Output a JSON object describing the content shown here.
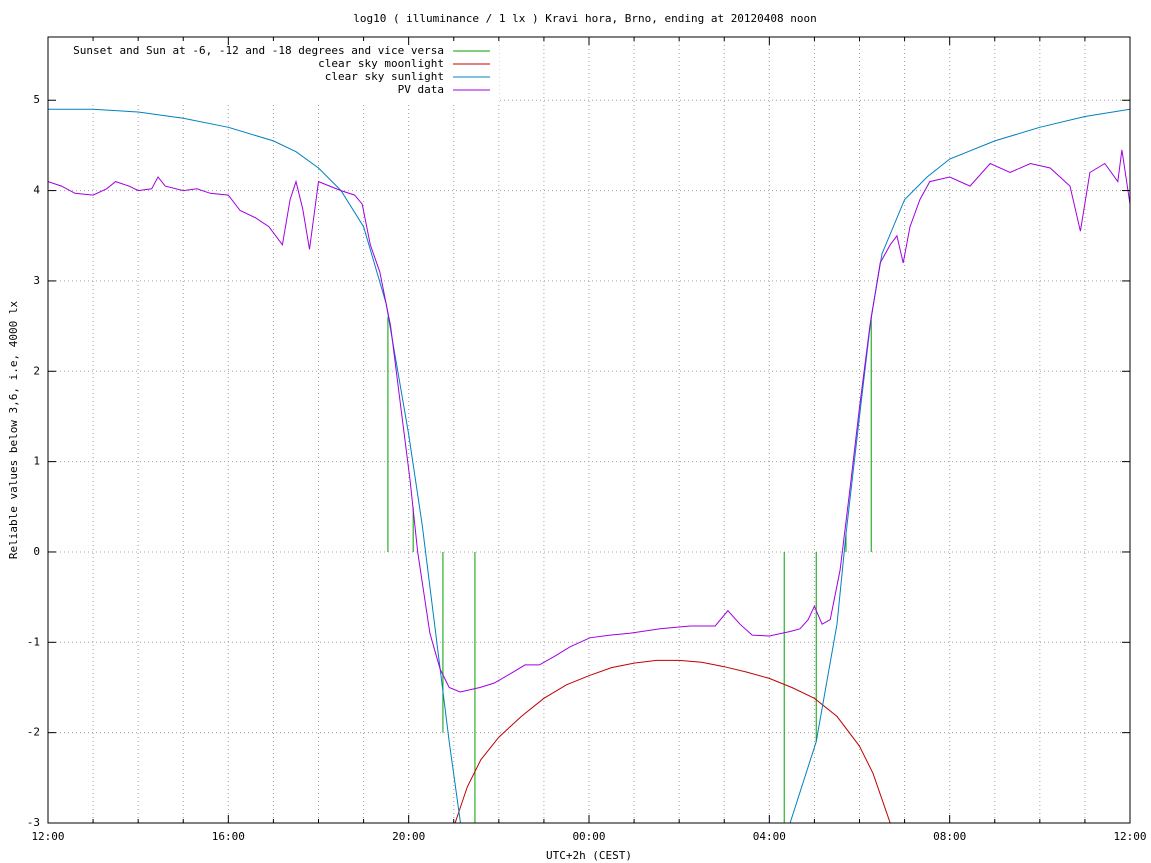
{
  "chart_data": {
    "type": "line",
    "title": "log10 ( illuminance / 1 lx ) Kravi hora, Brno, ending at 20120408 noon",
    "x_label": "UTC+2h (CEST)",
    "y_label": "Reliable values below 3,6, i.e, 4000 lx",
    "xlim": [
      0,
      24
    ],
    "ylim": [
      -3,
      5.7
    ],
    "xticks": [
      {
        "value": 0,
        "label": "12:00"
      },
      {
        "value": 4,
        "label": "16:00"
      },
      {
        "value": 8,
        "label": "20:00"
      },
      {
        "value": 12,
        "label": "00:00"
      },
      {
        "value": 16,
        "label": "04:00"
      },
      {
        "value": 20,
        "label": "08:00"
      },
      {
        "value": 24,
        "label": "12:00"
      }
    ],
    "x_minor_ticks": [
      1,
      2,
      3,
      5,
      6,
      7,
      9,
      10,
      11,
      13,
      14,
      15,
      17,
      18,
      19,
      21,
      22,
      23
    ],
    "yticks": [
      -3,
      -2,
      -1,
      0,
      1,
      2,
      3,
      4,
      5
    ],
    "grid": true,
    "legend": "top-left",
    "series": [
      {
        "name": "Sunset and Sun at -6, -12 and -18 degrees and vice versa",
        "color": "#00a000",
        "style": "impulses",
        "x": [
          7.54,
          8.1,
          8.76,
          9.47,
          16.33,
          17.04,
          17.7,
          18.26
        ],
        "values": [
          2.6,
          0.5,
          -2.0,
          -3.0,
          -3.0,
          -2.1,
          0.2,
          2.6
        ]
      },
      {
        "name": "clear sky moonlight",
        "color": "#c00000",
        "style": "lines",
        "x": [
          9.03,
          9.3,
          9.6,
          10,
          10.5,
          11,
          11.5,
          12,
          12.5,
          13,
          13.5,
          14,
          14.5,
          15,
          15.5,
          16,
          16.5,
          17,
          17.5,
          18,
          18.3,
          18.68
        ],
        "values": [
          -3.0,
          -2.6,
          -2.3,
          -2.05,
          -1.82,
          -1.62,
          -1.47,
          -1.37,
          -1.28,
          -1.23,
          -1.2,
          -1.2,
          -1.22,
          -1.27,
          -1.33,
          -1.4,
          -1.5,
          -1.62,
          -1.82,
          -2.15,
          -2.45,
          -3.0
        ]
      },
      {
        "name": "clear sky sunlight",
        "color": "#0080c0",
        "style": "lines",
        "x": [
          0,
          1,
          2,
          3,
          4,
          5,
          5.5,
          6,
          6.5,
          7,
          7.5,
          8,
          8.3,
          8.6,
          8.9,
          9.15,
          null,
          16.46,
          17.04,
          17.5,
          17.7,
          18,
          18.26,
          18.5,
          19,
          19.5,
          20,
          21,
          22,
          23,
          24
        ],
        "values": [
          4.9,
          4.9,
          4.87,
          4.8,
          4.7,
          4.55,
          4.43,
          4.25,
          4.0,
          3.6,
          2.75,
          1.3,
          0.3,
          -0.9,
          -2.1,
          -3.0,
          null,
          -3.0,
          -2.1,
          -0.8,
          0.2,
          1.5,
          2.6,
          3.3,
          3.9,
          4.15,
          4.35,
          4.55,
          4.7,
          4.82,
          4.9
        ]
      },
      {
        "name": "PV data",
        "color": "#a000e0",
        "style": "lines",
        "x": [
          0,
          0.3,
          0.6,
          1,
          1.3,
          1.5,
          1.8,
          2,
          2.3,
          2.44,
          2.6,
          3,
          3.3,
          3.6,
          4,
          4.26,
          4.6,
          4.9,
          5.2,
          5.37,
          5.5,
          5.65,
          5.8,
          6,
          6.5,
          6.8,
          6.97,
          7.15,
          7.36,
          7.6,
          7.8,
          8.03,
          8.2,
          8.47,
          8.7,
          8.9,
          9.14,
          9.58,
          9.9,
          10.25,
          10.58,
          10.9,
          11.25,
          11.58,
          12.02,
          12.47,
          12.9,
          13.58,
          14.24,
          14.8,
          15.08,
          15.35,
          15.62,
          16,
          16.46,
          16.68,
          16.86,
          17,
          17.17,
          17.35,
          17.57,
          17.79,
          18,
          18.23,
          18.46,
          18.68,
          18.83,
          18.97,
          19.12,
          19.34,
          19.56,
          20,
          20.45,
          20.9,
          21.34,
          21.79,
          22.23,
          22.67,
          22.9,
          23.11,
          23.44,
          23.73,
          23.82,
          24
        ],
        "values": [
          4.1,
          4.05,
          3.97,
          3.95,
          4.02,
          4.1,
          4.05,
          4.0,
          4.02,
          4.15,
          4.05,
          4.0,
          4.02,
          3.97,
          3.95,
          3.78,
          3.7,
          3.6,
          3.4,
          3.9,
          4.1,
          3.8,
          3.35,
          4.1,
          4.0,
          3.95,
          3.85,
          3.4,
          3.1,
          2.5,
          1.7,
          0.8,
          0.0,
          -0.9,
          -1.3,
          -1.5,
          -1.55,
          -1.5,
          -1.45,
          -1.35,
          -1.25,
          -1.25,
          -1.15,
          -1.05,
          -0.95,
          -0.92,
          -0.9,
          -0.85,
          -0.82,
          -0.82,
          -0.65,
          -0.8,
          -0.92,
          -0.93,
          -0.88,
          -0.85,
          -0.75,
          -0.6,
          -0.8,
          -0.75,
          -0.2,
          0.7,
          1.6,
          2.5,
          3.2,
          3.4,
          3.5,
          3.2,
          3.6,
          3.9,
          4.1,
          4.15,
          4.05,
          4.3,
          4.2,
          4.3,
          4.25,
          4.05,
          3.55,
          4.2,
          4.3,
          4.1,
          4.45,
          3.85
        ]
      }
    ]
  }
}
